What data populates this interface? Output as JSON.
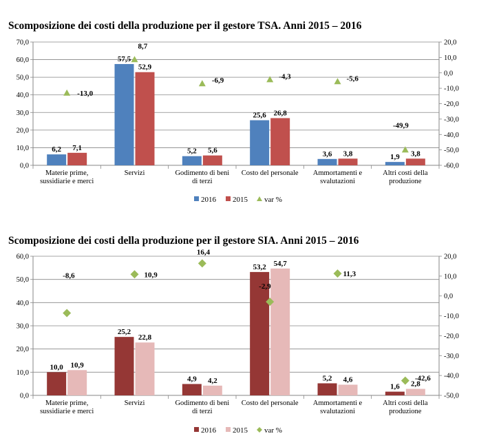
{
  "chart_data": [
    {
      "type": "bar",
      "title": "Scomposizione dei costi della produzione per il gestore TSA. Anni 2015 – 2016",
      "categories": [
        "Materie prime,\nsussidiarie e merci",
        "Servizi",
        "Godimento di beni\ndi terzi",
        "Costo del personale",
        "Ammortamenti e\nsvalutazioni",
        "Altri costi della\nproduzione"
      ],
      "series": [
        {
          "name": "2016",
          "axis": "left",
          "values": [
            6.2,
            57.5,
            5.2,
            25.6,
            3.6,
            1.9
          ],
          "labels": [
            "6,2",
            "57,5",
            "5,2",
            "25,6",
            "3,6",
            "1,9"
          ],
          "color": "#4f81bd"
        },
        {
          "name": "2015",
          "axis": "left",
          "values": [
            7.1,
            52.9,
            5.6,
            26.8,
            3.8,
            3.8
          ],
          "labels": [
            "7,1",
            "52,9",
            "5,6",
            "26,8",
            "3,8",
            "3,8"
          ],
          "color": "#c0504d"
        },
        {
          "name": "var %",
          "axis": "right",
          "marker": "triangle",
          "values": [
            -13.0,
            8.7,
            -6.9,
            -4.3,
            -5.6,
            -49.9
          ],
          "labels": [
            "-13,0",
            "8,7",
            "-6,9",
            "-4,3",
            "-5,6",
            "-49,9"
          ],
          "color": "#9bbb59"
        }
      ],
      "ylim": [
        0,
        70
      ],
      "yticks": [
        "0,0",
        "10,0",
        "20,0",
        "30,0",
        "40,0",
        "50,0",
        "60,0",
        "70,0"
      ],
      "y2lim": [
        -60,
        20
      ],
      "y2ticks": [
        "-60,0",
        "-50,0",
        "-40,0",
        "-30,0",
        "-20,0",
        "-10,0",
        "0,0",
        "10,0",
        "20,0"
      ],
      "grid": true,
      "legend": "bottom"
    },
    {
      "type": "bar",
      "title": "Scomposizione dei costi della produzione per il gestore SIA. Anni 2015 – 2016",
      "categories": [
        "Materie prime,\nsussidiarie e merci",
        "Servizi",
        "Godimento di beni\ndi terzi",
        "Costo del personale",
        "Ammortamenti e\nsvalutazioni",
        "Altri costi della\nproduzione"
      ],
      "series": [
        {
          "name": "2016",
          "axis": "left",
          "values": [
            10.0,
            25.2,
            4.9,
            53.2,
            5.2,
            1.6
          ],
          "labels": [
            "10,0",
            "25,2",
            "4,9",
            "53,2",
            "5,2",
            "1,6"
          ],
          "color": "#953735"
        },
        {
          "name": "2015",
          "axis": "left",
          "values": [
            10.9,
            22.8,
            4.2,
            54.7,
            4.6,
            2.8
          ],
          "labels": [
            "10,9",
            "22,8",
            "4,2",
            "54,7",
            "4,6",
            "2,8"
          ],
          "color": "#e6b9b8"
        },
        {
          "name": "var %",
          "axis": "right",
          "marker": "diamond",
          "values": [
            -8.6,
            10.9,
            16.4,
            -2.9,
            11.3,
            -42.6
          ],
          "labels": [
            "-8,6",
            "10,9",
            "16,4",
            "-2,9",
            "11,3",
            "-42,6"
          ],
          "color": "#9bbb59"
        }
      ],
      "ylim": [
        0,
        60
      ],
      "yticks": [
        "0,0",
        "10,0",
        "20,0",
        "30,0",
        "40,0",
        "50,0",
        "60,0"
      ],
      "y2lim": [
        -50,
        20
      ],
      "y2ticks": [
        "-50,0",
        "-40,0",
        "-30,0",
        "-20,0",
        "-10,0",
        "0,0",
        "10,0",
        "20,0"
      ],
      "grid": true,
      "legend": "bottom"
    }
  ]
}
